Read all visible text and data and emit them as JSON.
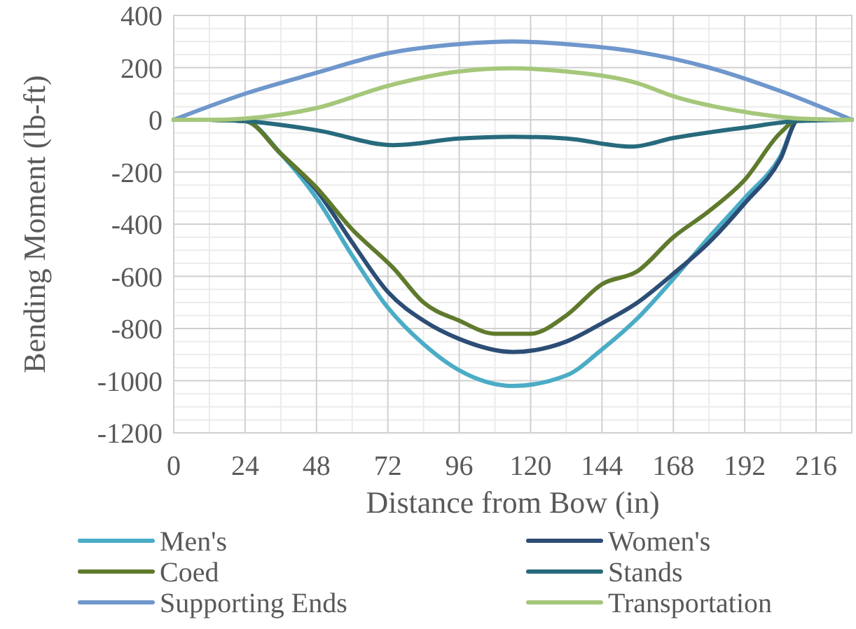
{
  "chart_data": {
    "type": "line",
    "xlabel": "Distance from Bow (in)",
    "ylabel": "Bending Moment (lb-ft)",
    "xlim": [
      0,
      228
    ],
    "xticks": [
      0,
      24,
      48,
      72,
      96,
      120,
      144,
      168,
      192,
      216
    ],
    "ylim": [
      -1200,
      400
    ],
    "yticks": [
      -1200,
      -1000,
      -800,
      -600,
      -400,
      -200,
      0,
      200,
      400
    ],
    "grid": true,
    "legend": "bottom",
    "marker": "none",
    "line_style": "solid",
    "series": [
      {
        "name": "Men's",
        "color": "#4bacc6",
        "x": [
          0,
          12,
          24,
          36,
          48,
          60,
          72,
          84,
          96,
          114,
          132,
          144,
          156,
          168,
          180,
          192,
          204,
          210,
          228
        ],
        "values": [
          0,
          0,
          -5,
          -130,
          -300,
          -520,
          -720,
          -860,
          -960,
          -1020,
          -980,
          -880,
          -760,
          -610,
          -450,
          -300,
          -140,
          0,
          0
        ]
      },
      {
        "name": "Women's",
        "color": "#2c4d75",
        "x": [
          0,
          12,
          24,
          36,
          48,
          60,
          72,
          84,
          96,
          114,
          132,
          144,
          156,
          168,
          180,
          192,
          204,
          210,
          228
        ],
        "values": [
          0,
          0,
          -5,
          -130,
          -270,
          -470,
          -660,
          -770,
          -840,
          -890,
          -850,
          -780,
          -700,
          -590,
          -470,
          -320,
          -150,
          0,
          0
        ]
      },
      {
        "name": "Coed",
        "color": "#5f7a2c",
        "x": [
          0,
          12,
          24,
          36,
          48,
          60,
          74,
          84,
          96,
          108,
          120,
          132,
          144,
          156,
          168,
          180,
          192,
          204,
          210,
          228
        ],
        "values": [
          0,
          0,
          -5,
          -130,
          -260,
          -420,
          -570,
          -700,
          -770,
          -820,
          -820,
          -750,
          -630,
          -580,
          -450,
          -350,
          -230,
          -50,
          0,
          0
        ]
      },
      {
        "name": "Stands",
        "color": "#276a7c",
        "x": [
          0,
          12,
          24,
          48,
          74,
          96,
          114,
          132,
          154,
          168,
          192,
          210,
          228
        ],
        "values": [
          0,
          0,
          -5,
          -40,
          -97,
          -72,
          -65,
          -72,
          -103,
          -70,
          -30,
          -5,
          0
        ]
      },
      {
        "name": "Supporting Ends",
        "color": "#6f97cc",
        "x": [
          0,
          24,
          48,
          72,
          96,
          114,
          132,
          156,
          180,
          204,
          228
        ],
        "values": [
          0,
          100,
          180,
          255,
          290,
          300,
          290,
          260,
          200,
          110,
          0
        ]
      },
      {
        "name": "Transportation",
        "color": "#a5c77a",
        "x": [
          0,
          12,
          24,
          48,
          72,
          96,
          114,
          132,
          156,
          168,
          192,
          210,
          228
        ],
        "values": [
          0,
          0,
          5,
          45,
          130,
          185,
          197,
          185,
          140,
          90,
          30,
          5,
          0
        ]
      }
    ]
  }
}
